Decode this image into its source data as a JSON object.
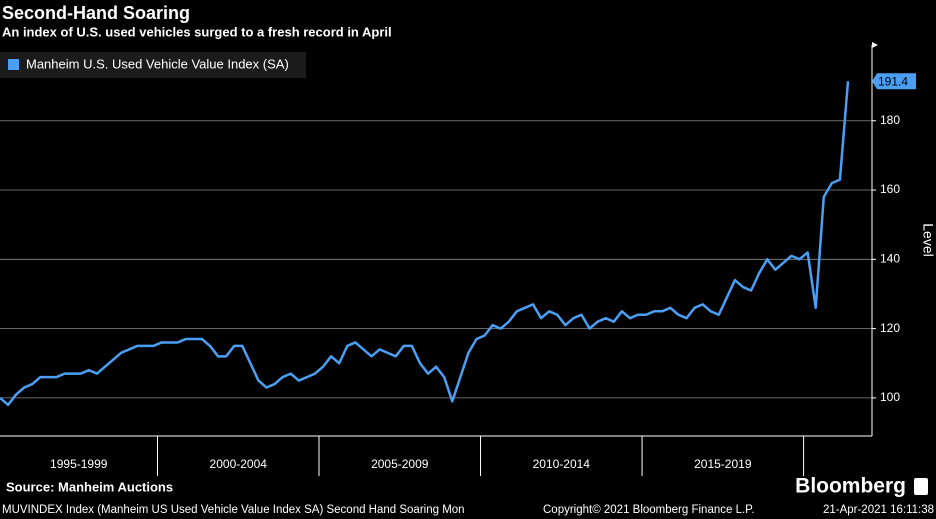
{
  "chart_data": {
    "type": "line",
    "title": "Second-Hand Soaring",
    "subtitle": "An index of U.S. used vehicles surged to a fresh record in April",
    "y_axis_label": "Level",
    "source": "Source: Manheim Auctions",
    "footer": "MUVINDEX Index (Manheim US Used Vehicle Value Index SA) Second Hand Soaring  Mon",
    "copyright": "Copyright© 2021 Bloomberg Finance L.P.",
    "timestamp": "21-Apr-2021 16:11:38",
    "logo": "Bloomberg",
    "period_labels": [
      "1995-1999",
      "2000-2004",
      "2005-2009",
      "2010-2014",
      "2015-2019",
      null
    ],
    "ylim": [
      89,
      201
    ],
    "yticks": [
      100,
      120,
      140,
      160,
      180
    ],
    "grid": true,
    "legend": "top-left",
    "series": [
      {
        "name": "Manheim U.S. Used Vehicle Value Index (SA)",
        "color": "#4a9ff5",
        "values": [
          100,
          98,
          101,
          103,
          104,
          106,
          106,
          106,
          107,
          107,
          107,
          108,
          107,
          109,
          111,
          113,
          114,
          115,
          115,
          115,
          116,
          116,
          116,
          117,
          117,
          117,
          115,
          112,
          112,
          115,
          115,
          110,
          105,
          103,
          104,
          106,
          107,
          105,
          106,
          107,
          109,
          112,
          110,
          115,
          116,
          114,
          112,
          114,
          113,
          112,
          115,
          115,
          110,
          107,
          109,
          106,
          99,
          106,
          113,
          117,
          118,
          121,
          120,
          122,
          125,
          126,
          127,
          123,
          125,
          124,
          121,
          123,
          124,
          120,
          122,
          123,
          122,
          125,
          123,
          124,
          124,
          125,
          125,
          126,
          124,
          123,
          126,
          127,
          125,
          124,
          129,
          134,
          132,
          131,
          136,
          140,
          137,
          139,
          141,
          140,
          142,
          126,
          158,
          162,
          163,
          191.4
        ]
      }
    ]
  }
}
